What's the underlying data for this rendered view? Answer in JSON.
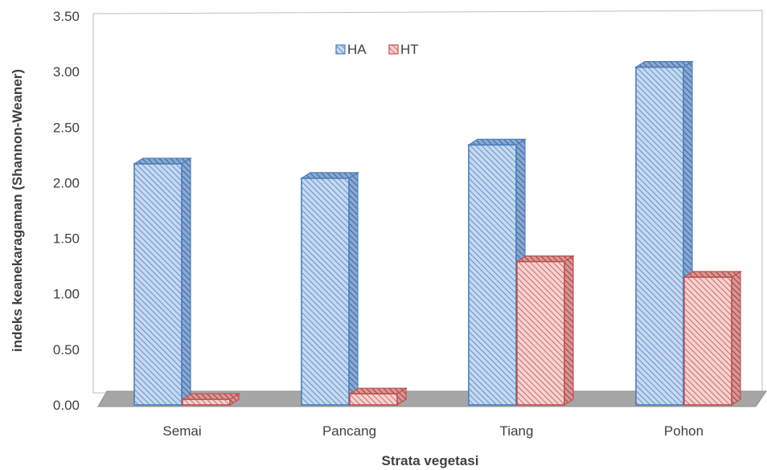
{
  "chart_data": {
    "type": "bar",
    "style": "3d-clustered-column",
    "categories": [
      "Semai",
      "Pancang",
      "Tiang",
      "Pohon"
    ],
    "series": [
      {
        "name": "HA",
        "values": [
          2.17,
          2.04,
          2.34,
          3.04
        ],
        "color": "#4a7ebb",
        "fill": "#c6d9f1"
      },
      {
        "name": "HT",
        "values": [
          0.05,
          0.1,
          1.29,
          1.15
        ],
        "color": "#c0504d",
        "fill": "#f2c4c3"
      }
    ],
    "xlabel": "Strata vegetasi",
    "ylabel": "indeks keanekaragaman (Shannon-Weaner)",
    "ylim": [
      0,
      3.5
    ],
    "yticks": [
      "0.00",
      "0.50",
      "1.00",
      "1.50",
      "2.00",
      "2.50",
      "3.00",
      "3.50"
    ],
    "legend_position": "top-center",
    "grid": false
  }
}
